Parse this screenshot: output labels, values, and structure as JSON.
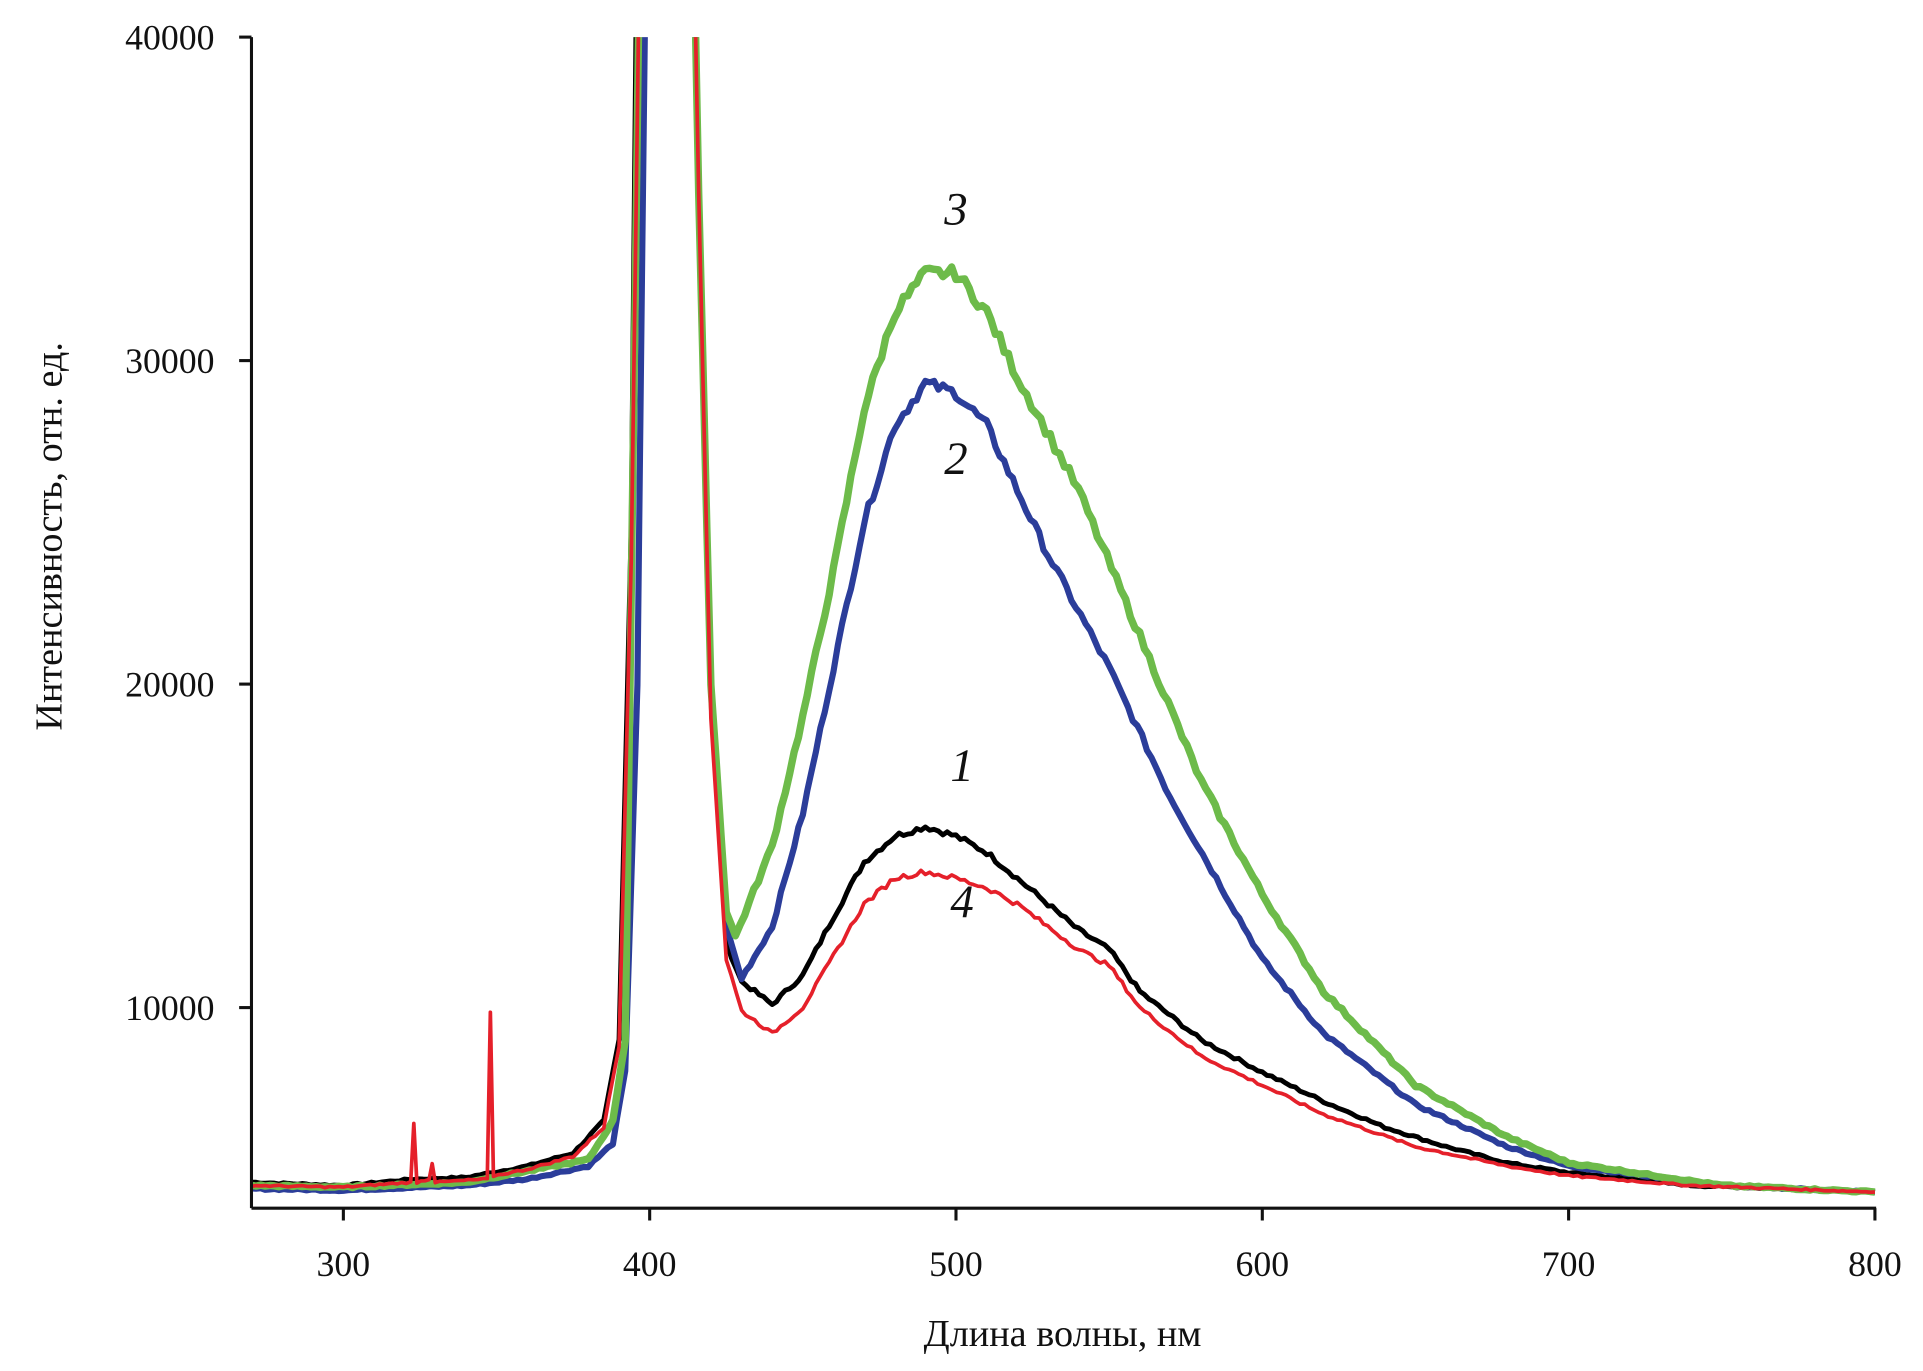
{
  "chart_data": {
    "type": "line",
    "title": "",
    "xlabel": "Длина волны, нм",
    "ylabel": "Интенсивность, отн. ед.",
    "xlim": [
      270,
      800
    ],
    "ylim": [
      3800,
      40000
    ],
    "xticks": [
      300,
      400,
      500,
      600,
      700,
      800
    ],
    "yticks": [
      10000,
      20000,
      30000,
      40000
    ],
    "xtick_labels": [
      "300",
      "400",
      "500",
      "600",
      "700",
      "800"
    ],
    "ytick_labels": [
      "10000",
      "20000",
      "30000",
      "40000"
    ],
    "grid": false,
    "legend": "none (curves numbered inline)",
    "series": [
      {
        "name": "1",
        "color": "#000000",
        "width": 4,
        "label_at": [
          502,
          17000
        ],
        "points": [
          [
            270,
            4600
          ],
          [
            300,
            4500
          ],
          [
            323,
            4700
          ],
          [
            340,
            4750
          ],
          [
            360,
            5100
          ],
          [
            375,
            5500
          ],
          [
            385,
            6500
          ],
          [
            390,
            9000
          ],
          [
            394,
            25000
          ],
          [
            396,
            45000
          ],
          [
            414,
            45000
          ],
          [
            416,
            35000
          ],
          [
            420,
            20000
          ],
          [
            425,
            12000
          ],
          [
            430,
            10800
          ],
          [
            440,
            10100
          ],
          [
            450,
            11000
          ],
          [
            460,
            12800
          ],
          [
            470,
            14500
          ],
          [
            480,
            15300
          ],
          [
            490,
            15600
          ],
          [
            500,
            15300
          ],
          [
            510,
            14800
          ],
          [
            520,
            14000
          ],
          [
            530,
            13200
          ],
          [
            540,
            12400
          ],
          [
            550,
            11800
          ],
          [
            560,
            10500
          ],
          [
            580,
            9000
          ],
          [
            600,
            8000
          ],
          [
            620,
            7100
          ],
          [
            640,
            6300
          ],
          [
            660,
            5700
          ],
          [
            680,
            5200
          ],
          [
            700,
            4900
          ],
          [
            740,
            4500
          ],
          [
            800,
            4300
          ]
        ]
      },
      {
        "name": "2",
        "color": "#2b3d9a",
        "width": 5,
        "label_at": [
          500,
          26500
        ],
        "points": [
          [
            270,
            4400
          ],
          [
            300,
            4350
          ],
          [
            340,
            4500
          ],
          [
            360,
            4700
          ],
          [
            380,
            5100
          ],
          [
            388,
            5800
          ],
          [
            392,
            8000
          ],
          [
            396,
            20000
          ],
          [
            399,
            45000
          ],
          [
            414,
            45000
          ],
          [
            416,
            35000
          ],
          [
            420,
            20000
          ],
          [
            425,
            12500
          ],
          [
            430,
            10900
          ],
          [
            440,
            12500
          ],
          [
            450,
            16000
          ],
          [
            460,
            20500
          ],
          [
            470,
            25000
          ],
          [
            480,
            28000
          ],
          [
            490,
            29300
          ],
          [
            500,
            29000
          ],
          [
            510,
            28000
          ],
          [
            520,
            26000
          ],
          [
            530,
            24000
          ],
          [
            550,
            20500
          ],
          [
            570,
            16500
          ],
          [
            600,
            11500
          ],
          [
            620,
            9200
          ],
          [
            650,
            7000
          ],
          [
            680,
            5700
          ],
          [
            700,
            5100
          ],
          [
            750,
            4500
          ],
          [
            800,
            4300
          ]
        ]
      },
      {
        "name": "3",
        "color": "#6dbb4a",
        "width": 6,
        "label_at": [
          500,
          34200
        ],
        "points": [
          [
            270,
            4500
          ],
          [
            300,
            4450
          ],
          [
            340,
            4600
          ],
          [
            380,
            5300
          ],
          [
            388,
            6500
          ],
          [
            392,
            9000
          ],
          [
            395,
            30000
          ],
          [
            397,
            45000
          ],
          [
            414,
            45000
          ],
          [
            416,
            35000
          ],
          [
            420,
            20000
          ],
          [
            425,
            13000
          ],
          [
            428,
            12200
          ],
          [
            440,
            15000
          ],
          [
            450,
            19000
          ],
          [
            460,
            23500
          ],
          [
            470,
            28500
          ],
          [
            480,
            31500
          ],
          [
            490,
            32700
          ],
          [
            500,
            32700
          ],
          [
            510,
            31500
          ],
          [
            520,
            29500
          ],
          [
            540,
            26000
          ],
          [
            560,
            21500
          ],
          [
            580,
            17000
          ],
          [
            600,
            13500
          ],
          [
            620,
            10500
          ],
          [
            650,
            7600
          ],
          [
            680,
            6000
          ],
          [
            700,
            5200
          ],
          [
            750,
            4500
          ],
          [
            800,
            4300
          ]
        ]
      },
      {
        "name": "4",
        "color": "#e5202a",
        "width": 3,
        "label_at": [
          502,
          12800
        ],
        "points": [
          [
            270,
            4500
          ],
          [
            300,
            4450
          ],
          [
            322,
            4600
          ],
          [
            323,
            6400
          ],
          [
            324,
            4600
          ],
          [
            328,
            4700
          ],
          [
            329,
            5200
          ],
          [
            330,
            4600
          ],
          [
            347,
            4700
          ],
          [
            348,
            9800
          ],
          [
            349,
            4800
          ],
          [
            360,
            5000
          ],
          [
            375,
            5400
          ],
          [
            385,
            6300
          ],
          [
            390,
            8800
          ],
          [
            394,
            24000
          ],
          [
            397,
            45000
          ],
          [
            414,
            45000
          ],
          [
            416,
            35000
          ],
          [
            420,
            19000
          ],
          [
            425,
            11500
          ],
          [
            430,
            9900
          ],
          [
            440,
            9200
          ],
          [
            450,
            10000
          ],
          [
            460,
            11600
          ],
          [
            470,
            13200
          ],
          [
            480,
            14000
          ],
          [
            490,
            14200
          ],
          [
            500,
            14000
          ],
          [
            510,
            13700
          ],
          [
            520,
            13200
          ],
          [
            530,
            12500
          ],
          [
            540,
            11800
          ],
          [
            550,
            11300
          ],
          [
            560,
            10000
          ],
          [
            580,
            8500
          ],
          [
            600,
            7600
          ],
          [
            620,
            6700
          ],
          [
            650,
            5700
          ],
          [
            680,
            5100
          ],
          [
            700,
            4800
          ],
          [
            740,
            4500
          ],
          [
            800,
            4300
          ]
        ]
      }
    ]
  }
}
